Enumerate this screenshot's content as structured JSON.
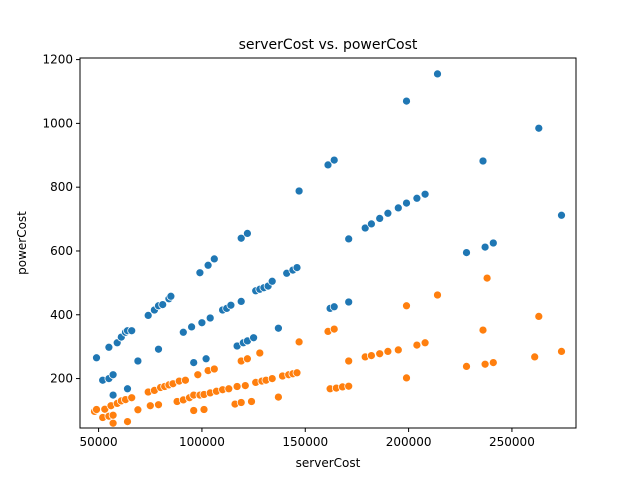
{
  "chart_data": {
    "type": "scatter",
    "title": "serverCost vs. powerCost",
    "xlabel": "serverCost",
    "ylabel": "powerCost",
    "xlim": [
      41000,
      281000
    ],
    "ylim": [
      45,
      1205
    ],
    "xticks": [
      50000,
      100000,
      150000,
      200000,
      250000
    ],
    "xtick_labels": [
      "50000",
      "100000",
      "150000",
      "200000",
      "250000"
    ],
    "yticks": [
      200,
      400,
      600,
      800,
      1000,
      1200
    ],
    "ytick_labels": [
      "200",
      "400",
      "600",
      "800",
      "1000",
      "1200"
    ],
    "grid": false,
    "legend": "none",
    "colors": [
      "#1f77b4",
      "#ff7f0e"
    ],
    "series": [
      {
        "color": "#1f77b4",
        "points": [
          [
            49000,
            265
          ],
          [
            52000,
            195
          ],
          [
            55000,
            200
          ],
          [
            55000,
            298
          ],
          [
            57000,
            212
          ],
          [
            57000,
            148
          ],
          [
            59000,
            312
          ],
          [
            61000,
            330
          ],
          [
            63000,
            345
          ],
          [
            64000,
            350
          ],
          [
            64000,
            168
          ],
          [
            66000,
            350
          ],
          [
            69000,
            255
          ],
          [
            74000,
            398
          ],
          [
            77000,
            415
          ],
          [
            79000,
            428
          ],
          [
            79000,
            292
          ],
          [
            81000,
            432
          ],
          [
            84000,
            450
          ],
          [
            85000,
            458
          ],
          [
            91000,
            345
          ],
          [
            95000,
            362
          ],
          [
            96000,
            250
          ],
          [
            99000,
            532
          ],
          [
            100000,
            375
          ],
          [
            102000,
            262
          ],
          [
            103000,
            555
          ],
          [
            104000,
            390
          ],
          [
            106000,
            575
          ],
          [
            110000,
            415
          ],
          [
            112000,
            420
          ],
          [
            114000,
            430
          ],
          [
            117000,
            302
          ],
          [
            119000,
            442
          ],
          [
            119000,
            640
          ],
          [
            120000,
            312
          ],
          [
            122000,
            655
          ],
          [
            122000,
            318
          ],
          [
            125000,
            328
          ],
          [
            126000,
            475
          ],
          [
            128000,
            480
          ],
          [
            130000,
            485
          ],
          [
            132000,
            490
          ],
          [
            134000,
            505
          ],
          [
            137000,
            358
          ],
          [
            141000,
            530
          ],
          [
            144000,
            540
          ],
          [
            146000,
            548
          ],
          [
            147000,
            788
          ],
          [
            161000,
            870
          ],
          [
            162000,
            420
          ],
          [
            164000,
            885
          ],
          [
            164000,
            425
          ],
          [
            171000,
            638
          ],
          [
            171000,
            440
          ],
          [
            179000,
            672
          ],
          [
            182000,
            685
          ],
          [
            186000,
            702
          ],
          [
            190000,
            718
          ],
          [
            195000,
            735
          ],
          [
            199000,
            1070
          ],
          [
            199000,
            750
          ],
          [
            204000,
            765
          ],
          [
            208000,
            778
          ],
          [
            214000,
            1155
          ],
          [
            228000,
            595
          ],
          [
            236000,
            882
          ],
          [
            237000,
            612
          ],
          [
            241000,
            625
          ],
          [
            263000,
            985
          ],
          [
            274000,
            712
          ]
        ]
      },
      {
        "color": "#ff7f0e",
        "points": [
          [
            48000,
            97
          ],
          [
            49000,
            103
          ],
          [
            52000,
            78
          ],
          [
            53000,
            104
          ],
          [
            55000,
            82
          ],
          [
            56000,
            115
          ],
          [
            57000,
            60
          ],
          [
            57000,
            85
          ],
          [
            59000,
            122
          ],
          [
            61000,
            130
          ],
          [
            63000,
            134
          ],
          [
            64000,
            65
          ],
          [
            66000,
            140
          ],
          [
            69000,
            102
          ],
          [
            74000,
            158
          ],
          [
            75000,
            115
          ],
          [
            77000,
            163
          ],
          [
            79000,
            118
          ],
          [
            80000,
            172
          ],
          [
            82000,
            175
          ],
          [
            84000,
            180
          ],
          [
            86000,
            184
          ],
          [
            88000,
            128
          ],
          [
            89000,
            192
          ],
          [
            91000,
            133
          ],
          [
            92000,
            195
          ],
          [
            94000,
            140
          ],
          [
            96000,
            100
          ],
          [
            96000,
            148
          ],
          [
            98000,
            212
          ],
          [
            99000,
            148
          ],
          [
            101000,
            103
          ],
          [
            101000,
            150
          ],
          [
            103000,
            225
          ],
          [
            104000,
            155
          ],
          [
            106000,
            230
          ],
          [
            107000,
            160
          ],
          [
            110000,
            165
          ],
          [
            113000,
            168
          ],
          [
            116000,
            120
          ],
          [
            117000,
            175
          ],
          [
            119000,
            255
          ],
          [
            119000,
            125
          ],
          [
            121000,
            178
          ],
          [
            122000,
            262
          ],
          [
            124000,
            128
          ],
          [
            126000,
            188
          ],
          [
            128000,
            280
          ],
          [
            129000,
            192
          ],
          [
            131000,
            195
          ],
          [
            134000,
            200
          ],
          [
            137000,
            142
          ],
          [
            139000,
            208
          ],
          [
            142000,
            212
          ],
          [
            144000,
            215
          ],
          [
            146000,
            218
          ],
          [
            147000,
            315
          ],
          [
            161000,
            348
          ],
          [
            162000,
            168
          ],
          [
            164000,
            355
          ],
          [
            165000,
            170
          ],
          [
            168000,
            174
          ],
          [
            171000,
            255
          ],
          [
            171000,
            176
          ],
          [
            179000,
            268
          ],
          [
            182000,
            272
          ],
          [
            186000,
            278
          ],
          [
            190000,
            285
          ],
          [
            195000,
            290
          ],
          [
            199000,
            428
          ],
          [
            199000,
            202
          ],
          [
            204000,
            305
          ],
          [
            208000,
            312
          ],
          [
            214000,
            462
          ],
          [
            228000,
            238
          ],
          [
            236000,
            352
          ],
          [
            237000,
            245
          ],
          [
            238000,
            515
          ],
          [
            241000,
            250
          ],
          [
            261000,
            268
          ],
          [
            263000,
            395
          ],
          [
            274000,
            285
          ]
        ]
      }
    ]
  }
}
